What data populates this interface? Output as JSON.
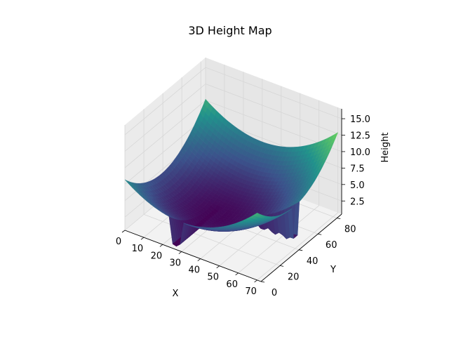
{
  "chart_data": {
    "type": "surface",
    "title": "3D Height Map",
    "xlabel": "X",
    "ylabel": "Y",
    "zlabel": "Height",
    "xlim": [
      0,
      72
    ],
    "ylim": [
      0,
      85
    ],
    "zlim": [
      0.5,
      16.5
    ],
    "xticks": [
      0,
      10,
      20,
      30,
      40,
      50,
      60,
      70
    ],
    "yticks": [
      0,
      20,
      40,
      60,
      80
    ],
    "zticks": [
      "2.5",
      "5.0",
      "7.5",
      "10.0",
      "12.5",
      "15.0"
    ],
    "grid": true,
    "colormap": "viridis",
    "colormap_stops": [
      "#440154",
      "#3b528b",
      "#21918c",
      "#5ec962",
      "#fde725"
    ],
    "surface": {
      "description_values": "height field over X 0-70, Y 0-85: concave bowl rising to ~16 at far corners, with vertical cliffs near X~25-30 and Y~40",
      "x_range": [
        0,
        70
      ],
      "y_range": [
        0,
        85
      ],
      "z_min": 1,
      "z_max": 16
    }
  }
}
